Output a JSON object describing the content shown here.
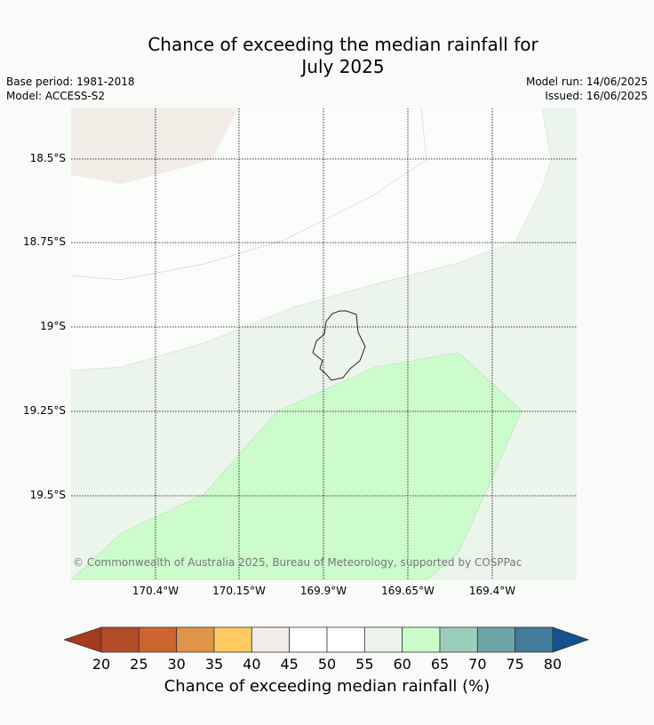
{
  "title": {
    "line1": "Chance of exceeding the median rainfall for",
    "line2": "July 2025"
  },
  "meta": {
    "base_period": "Base period: 1981-2018",
    "model": "Model: ACCESS-S2",
    "model_run": "Model run: 14/06/2025",
    "issued": "Issued: 16/06/2025"
  },
  "map": {
    "latitude_labels": [
      "18.5°S",
      "18.75°S",
      "19°S",
      "19.25°S",
      "19.5°S"
    ],
    "longitude_labels": [
      "170.4°W",
      "170.15°W",
      "169.9°W",
      "169.65°W",
      "169.4°W"
    ],
    "copyright": "© Commonwealth of Australia 2025, Bureau of Meteorology, supported by COSPPac",
    "regions": [
      {
        "category": "45-50",
        "color": "#f1ece6"
      },
      {
        "category": "50-55",
        "color": "#fbfdfb"
      },
      {
        "category": "55-60",
        "color": "#ebf5eb"
      },
      {
        "category": "60-65",
        "color": "#ccfccc"
      }
    ]
  },
  "colorbar": {
    "label": "Chance of exceeding median rainfall (%)",
    "ticks": [
      "20",
      "25",
      "30",
      "35",
      "40",
      "45",
      "50",
      "55",
      "60",
      "65",
      "70",
      "75",
      "80"
    ],
    "under_color": "#a53a1f",
    "over_color": "#15508f",
    "colors": [
      "#b44b27",
      "#cc6532",
      "#e09448",
      "#fecb63",
      "#f1ece6",
      "#ffffff",
      "#ffffff",
      "#eaf5ea",
      "#cbfbcb",
      "#9ccfbb",
      "#6ea4a9",
      "#437b9b"
    ]
  }
}
